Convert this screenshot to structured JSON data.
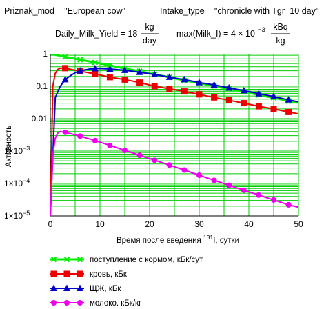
{
  "header": {
    "line1_left": "Priznak_mod = \"European cow\"",
    "line1_right": "Intake_type = \"chronicle with Tgr=10 day\"",
    "yield_lhs": "Daily_Milk_Yield = 18",
    "yield_num": "kg",
    "yield_den": "day",
    "max_lhs": "max(Milk_I) = 4 × 10",
    "max_exp": "−3",
    "max_num": "kBq",
    "max_den": "kg"
  },
  "chart_data": {
    "type": "line",
    "xlabel_main": "Время после введения ",
    "xlabel_sup": "131",
    "xlabel_tail": "I, сутки",
    "ylabel": "Активность",
    "xlim": [
      0,
      50
    ],
    "ylim": [
      1e-05,
      1
    ],
    "yscale": "log",
    "grid": true,
    "xticks": [
      0,
      10,
      20,
      30,
      40,
      50
    ],
    "xtick_labels": [
      "0",
      "10",
      "20",
      "30",
      "40",
      "50"
    ],
    "yticks": [
      1,
      0.1,
      0.01,
      0.001,
      0.0001,
      1e-05
    ],
    "ytick_labels": [
      {
        "base": "1",
        "exp": ""
      },
      {
        "base": "0.1",
        "exp": ""
      },
      {
        "base": "0.01",
        "exp": ""
      },
      {
        "base": "1×10",
        "exp": "−3"
      },
      {
        "base": "1×10",
        "exp": "−4"
      },
      {
        "base": "1×10",
        "exp": "−5"
      }
    ],
    "legend_position": "bottom",
    "series": [
      {
        "name": "поступление с кормом, кБк/сут",
        "color": "#00ee00",
        "marker": "x",
        "x": [
          0,
          3,
          6,
          9,
          12,
          15,
          18,
          21,
          24,
          27,
          30,
          33,
          36,
          39,
          42,
          45,
          48,
          50
        ],
        "y": [
          1.0,
          0.81,
          0.66,
          0.54,
          0.44,
          0.35,
          0.29,
          0.23,
          0.19,
          0.15,
          0.125,
          0.1,
          0.082,
          0.067,
          0.054,
          0.044,
          0.035,
          0.031
        ]
      },
      {
        "name": "кровь, кБк",
        "color": "#ee0000",
        "marker": "square",
        "x": [
          0,
          0.5,
          1,
          1.5,
          2,
          3,
          6,
          9,
          12,
          15,
          18,
          21,
          24,
          27,
          30,
          33,
          36,
          39,
          42,
          45,
          48,
          50
        ],
        "y": [
          1e-05,
          0.1,
          0.25,
          0.33,
          0.36,
          0.36,
          0.29,
          0.24,
          0.19,
          0.16,
          0.13,
          0.1,
          0.084,
          0.069,
          0.056,
          0.045,
          0.037,
          0.03,
          0.024,
          0.02,
          0.016,
          0.014
        ]
      },
      {
        "name": "ЩЖ, кБк",
        "color": "#0000cc",
        "marker": "triangle",
        "x": [
          0,
          1,
          2,
          3,
          4,
          5,
          6,
          8,
          9,
          10,
          12,
          15,
          18,
          21,
          24,
          27,
          30,
          33,
          36,
          39,
          42,
          45,
          48,
          50
        ],
        "y": [
          1e-05,
          0.045,
          0.1,
          0.16,
          0.21,
          0.26,
          0.3,
          0.34,
          0.35,
          0.35,
          0.34,
          0.31,
          0.27,
          0.23,
          0.19,
          0.16,
          0.13,
          0.11,
          0.089,
          0.073,
          0.059,
          0.048,
          0.038,
          0.033
        ]
      },
      {
        "name": "молоко, кБк/кг",
        "color": "#ee00ee",
        "marker": "circle",
        "x": [
          0,
          0.5,
          1,
          1.5,
          2,
          3,
          6,
          9,
          12,
          15,
          18,
          21,
          24,
          27,
          30,
          33,
          36,
          39,
          42,
          45,
          48,
          50
        ],
        "y": [
          1e-05,
          0.0008,
          0.0025,
          0.0036,
          0.004,
          0.0038,
          0.0029,
          0.0021,
          0.0015,
          0.00105,
          0.00074,
          0.00052,
          0.00037,
          0.00026,
          0.00018,
          0.000125,
          8.8e-05,
          6.2e-05,
          4.4e-05,
          3.1e-05,
          2.2e-05,
          1.85e-05
        ]
      }
    ]
  }
}
